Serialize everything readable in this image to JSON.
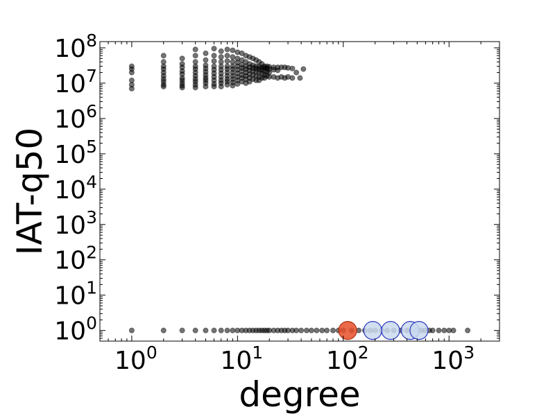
{
  "chart_data": {
    "type": "scatter",
    "title": "",
    "xlabel": "degree",
    "ylabel": "IAT-q50",
    "x_scale": "log",
    "y_scale": "log",
    "xlim": [
      0.5,
      3000
    ],
    "ylim": [
      0.5,
      150000000
    ],
    "x_ticks": [
      {
        "value": 1,
        "base": "10",
        "exp": "0"
      },
      {
        "value": 10,
        "base": "10",
        "exp": "1"
      },
      {
        "value": 100,
        "base": "10",
        "exp": "2"
      },
      {
        "value": 1000,
        "base": "10",
        "exp": "3"
      }
    ],
    "y_ticks": [
      {
        "value": 1,
        "base": "10",
        "exp": "0"
      },
      {
        "value": 10,
        "base": "10",
        "exp": "1"
      },
      {
        "value": 100,
        "base": "10",
        "exp": "2"
      },
      {
        "value": 1000,
        "base": "10",
        "exp": "3"
      },
      {
        "value": 10000,
        "base": "10",
        "exp": "4"
      },
      {
        "value": 100000,
        "base": "10",
        "exp": "5"
      },
      {
        "value": 1000000,
        "base": "10",
        "exp": "6"
      },
      {
        "value": 10000000,
        "base": "10",
        "exp": "7"
      },
      {
        "value": 100000000,
        "base": "10",
        "exp": "8"
      }
    ],
    "grid": false,
    "series": [
      {
        "color": "#000000",
        "points": [
          [
            1,
            1
          ],
          [
            2,
            1
          ],
          [
            3,
            1
          ],
          [
            4,
            1
          ],
          [
            5,
            1
          ],
          [
            6,
            1
          ],
          [
            7,
            1
          ],
          [
            8,
            1
          ],
          [
            9,
            1
          ],
          [
            10,
            1
          ],
          [
            11,
            1
          ],
          [
            12,
            1
          ],
          [
            13,
            1
          ],
          [
            14,
            1
          ],
          [
            15,
            1
          ],
          [
            16,
            1
          ],
          [
            17,
            1
          ],
          [
            18,
            1
          ],
          [
            19,
            1
          ],
          [
            20,
            1
          ],
          [
            22,
            1
          ],
          [
            24,
            1
          ],
          [
            26,
            1
          ],
          [
            28,
            1
          ],
          [
            30,
            1
          ],
          [
            33,
            1
          ],
          [
            36,
            1
          ],
          [
            40,
            1
          ],
          [
            45,
            1
          ],
          [
            50,
            1
          ],
          [
            56,
            1
          ],
          [
            63,
            1
          ],
          [
            70,
            1
          ],
          [
            80,
            1
          ],
          [
            90,
            1
          ],
          [
            100,
            1
          ],
          [
            120,
            1
          ],
          [
            140,
            1
          ],
          [
            160,
            1
          ],
          [
            180,
            1
          ],
          [
            200,
            1
          ],
          [
            230,
            1
          ],
          [
            260,
            1
          ],
          [
            300,
            1
          ],
          [
            350,
            1
          ],
          [
            400,
            1
          ],
          [
            450,
            1
          ],
          [
            500,
            1
          ],
          [
            550,
            1
          ],
          [
            600,
            1
          ],
          [
            650,
            1
          ],
          [
            700,
            1
          ],
          [
            800,
            1
          ],
          [
            900,
            1
          ],
          [
            1000,
            1
          ],
          [
            1100,
            1
          ],
          [
            1500,
            1
          ],
          [
            1,
            30000000
          ],
          [
            1,
            25000000
          ],
          [
            1,
            20000000
          ],
          [
            1,
            12000000
          ],
          [
            1,
            9000000
          ],
          [
            1,
            7000000
          ],
          [
            2,
            60000000
          ],
          [
            2,
            40000000
          ],
          [
            2,
            30000000
          ],
          [
            2,
            25000000
          ],
          [
            2,
            20000000
          ],
          [
            2,
            16000000
          ],
          [
            2,
            13000000
          ],
          [
            2,
            11000000
          ],
          [
            2,
            9000000
          ],
          [
            2,
            8000000
          ],
          [
            3,
            50000000
          ],
          [
            3,
            35000000
          ],
          [
            3,
            28000000
          ],
          [
            3,
            22000000
          ],
          [
            3,
            18000000
          ],
          [
            3,
            14000000
          ],
          [
            3,
            12000000
          ],
          [
            3,
            10000000
          ],
          [
            3,
            8500000
          ],
          [
            3,
            7500000
          ],
          [
            4,
            90000000
          ],
          [
            4,
            60000000
          ],
          [
            4,
            40000000
          ],
          [
            4,
            30000000
          ],
          [
            4,
            25000000
          ],
          [
            4,
            20000000
          ],
          [
            4,
            16000000
          ],
          [
            4,
            13000000
          ],
          [
            4,
            11000000
          ],
          [
            4,
            9000000
          ],
          [
            4,
            7500000
          ],
          [
            5,
            70000000
          ],
          [
            5,
            45000000
          ],
          [
            5,
            32000000
          ],
          [
            5,
            26000000
          ],
          [
            5,
            21000000
          ],
          [
            5,
            17000000
          ],
          [
            5,
            14000000
          ],
          [
            5,
            12000000
          ],
          [
            5,
            10000000
          ],
          [
            5,
            8000000
          ],
          [
            6,
            95000000
          ],
          [
            6,
            60000000
          ],
          [
            6,
            42000000
          ],
          [
            6,
            30000000
          ],
          [
            6,
            24000000
          ],
          [
            6,
            19000000
          ],
          [
            6,
            15000000
          ],
          [
            6,
            12000000
          ],
          [
            6,
            9500000
          ],
          [
            6,
            8000000
          ],
          [
            7,
            80000000
          ],
          [
            7,
            55000000
          ],
          [
            7,
            40000000
          ],
          [
            7,
            30000000
          ],
          [
            7,
            24000000
          ],
          [
            7,
            19000000
          ],
          [
            7,
            15000000
          ],
          [
            7,
            12000000
          ],
          [
            7,
            10000000
          ],
          [
            7,
            8000000
          ],
          [
            8,
            90000000
          ],
          [
            8,
            60000000
          ],
          [
            8,
            42000000
          ],
          [
            8,
            30000000
          ],
          [
            8,
            25000000
          ],
          [
            8,
            20000000
          ],
          [
            8,
            16000000
          ],
          [
            8,
            13000000
          ],
          [
            8,
            11000000
          ],
          [
            8,
            9000000
          ],
          [
            9,
            85000000
          ],
          [
            9,
            55000000
          ],
          [
            9,
            40000000
          ],
          [
            9,
            30000000
          ],
          [
            9,
            25000000
          ],
          [
            9,
            20000000
          ],
          [
            9,
            16000000
          ],
          [
            9,
            13000000
          ],
          [
            9,
            10500000
          ],
          [
            9,
            8500000
          ],
          [
            10,
            75000000
          ],
          [
            10,
            50000000
          ],
          [
            10,
            38000000
          ],
          [
            10,
            30000000
          ],
          [
            10,
            24000000
          ],
          [
            10,
            19000000
          ],
          [
            10,
            15000000
          ],
          [
            10,
            12000000
          ],
          [
            10,
            9500000
          ],
          [
            11,
            70000000
          ],
          [
            11,
            45000000
          ],
          [
            11,
            33000000
          ],
          [
            11,
            27000000
          ],
          [
            11,
            22000000
          ],
          [
            11,
            17000000
          ],
          [
            11,
            14000000
          ],
          [
            11,
            11000000
          ],
          [
            12,
            60000000
          ],
          [
            12,
            40000000
          ],
          [
            12,
            30000000
          ],
          [
            12,
            25000000
          ],
          [
            12,
            20000000
          ],
          [
            12,
            16000000
          ],
          [
            12,
            13000000
          ],
          [
            12,
            10000000
          ],
          [
            13,
            55000000
          ],
          [
            13,
            35000000
          ],
          [
            13,
            28000000
          ],
          [
            13,
            23000000
          ],
          [
            13,
            18000000
          ],
          [
            13,
            14000000
          ],
          [
            13,
            11000000
          ],
          [
            14,
            50000000
          ],
          [
            14,
            32000000
          ],
          [
            14,
            27000000
          ],
          [
            14,
            22000000
          ],
          [
            14,
            17000000
          ],
          [
            14,
            13000000
          ],
          [
            15,
            45000000
          ],
          [
            15,
            30000000
          ],
          [
            15,
            26000000
          ],
          [
            15,
            21000000
          ],
          [
            15,
            16000000
          ],
          [
            15,
            12000000
          ],
          [
            16,
            40000000
          ],
          [
            16,
            29000000
          ],
          [
            16,
            25000000
          ],
          [
            16,
            20000000
          ],
          [
            16,
            15000000
          ],
          [
            16,
            12000000
          ],
          [
            17,
            35000000
          ],
          [
            17,
            28000000
          ],
          [
            17,
            24000000
          ],
          [
            17,
            19000000
          ],
          [
            17,
            14000000
          ],
          [
            18,
            30000000
          ],
          [
            18,
            27000000
          ],
          [
            18,
            22000000
          ],
          [
            18,
            17000000
          ],
          [
            18,
            14000000
          ],
          [
            19,
            30000000
          ],
          [
            19,
            26000000
          ],
          [
            19,
            21000000
          ],
          [
            19,
            16000000
          ],
          [
            20,
            29000000
          ],
          [
            20,
            25000000
          ],
          [
            20,
            20000000
          ],
          [
            20,
            15000000
          ],
          [
            22,
            28000000
          ],
          [
            22,
            24000000
          ],
          [
            22,
            15000000
          ],
          [
            24,
            28000000
          ],
          [
            24,
            23000000
          ],
          [
            24,
            14000000
          ],
          [
            26,
            28000000
          ],
          [
            26,
            15000000
          ],
          [
            28,
            28000000
          ],
          [
            28,
            14000000
          ],
          [
            30,
            27000000
          ],
          [
            30,
            15000000
          ],
          [
            33,
            26000000
          ],
          [
            33,
            14000000
          ],
          [
            36,
            20000000
          ],
          [
            39,
            14000000
          ],
          [
            42,
            25000000
          ]
        ]
      }
    ],
    "highlights": [
      {
        "x": 110,
        "y": 1,
        "color": "#e8502a",
        "edge": "#b03010"
      },
      {
        "x": 190,
        "y": 1,
        "color": "#c9d9ee",
        "edge": "#2a36c0"
      },
      {
        "x": 280,
        "y": 1,
        "color": "#c9d9ee",
        "edge": "#2a36c0"
      },
      {
        "x": 430,
        "y": 1,
        "color": "#c9d9ee",
        "edge": "#2a36c0"
      },
      {
        "x": 520,
        "y": 1,
        "color": "#c9d9ee",
        "edge": "#2a36c0"
      }
    ]
  }
}
